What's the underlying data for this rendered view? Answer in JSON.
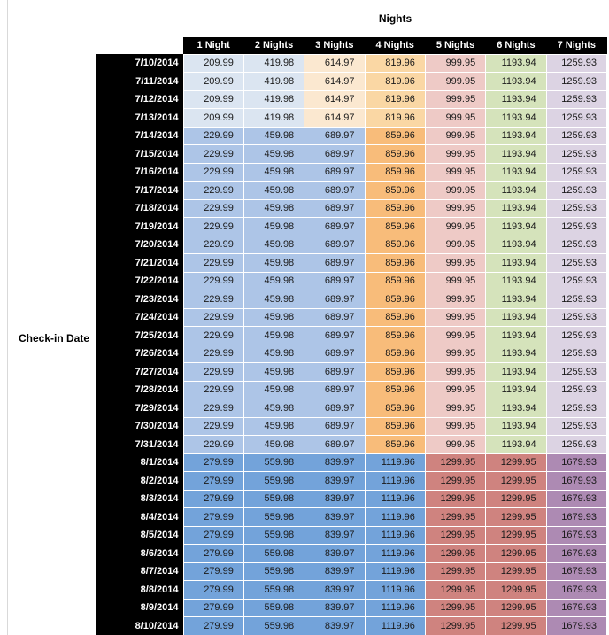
{
  "chart_data": {
    "type": "table",
    "title": "Nights",
    "row_axis_label": "Check-in Date",
    "columns": [
      "1 Night",
      "2 Nights",
      "3 Nights",
      "4 Nights",
      "5 Nights",
      "6 Nights",
      "7 Nights"
    ],
    "header_style": {
      "bg": "#000000",
      "text": "#ffffff"
    },
    "palette": {
      "blue_pale": "#dbe5f1",
      "blue_light": "#adc5e7",
      "blue_medium": "#73a3da",
      "peach_pale": "#fbe8d0",
      "orange_light": "#fad7a4",
      "orange": "#f8bc7a",
      "pink_pale": "#eecac6",
      "red_salmon": "#cf837f",
      "green_pale": "#d5e3bb",
      "lavender_pale": "#dcd3e3",
      "purple_mauve": "#ad8ab3"
    },
    "band_colors": {
      "early": [
        "blue_pale",
        "blue_pale",
        "peach_pale",
        "orange_light",
        "pink_pale",
        "green_pale",
        "lavender_pale"
      ],
      "mid": [
        "blue_light",
        "blue_light",
        "blue_light",
        "orange",
        "pink_pale",
        "green_pale",
        "lavender_pale"
      ],
      "late": [
        "blue_medium",
        "blue_medium",
        "blue_medium",
        "blue_medium",
        "red_salmon",
        "red_salmon",
        "purple_mauve"
      ]
    },
    "rows": [
      {
        "date": "7/10/2014",
        "band": "early",
        "values": [
          209.99,
          419.98,
          614.97,
          819.96,
          999.95,
          1193.94,
          1259.93
        ]
      },
      {
        "date": "7/11/2014",
        "band": "early",
        "values": [
          209.99,
          419.98,
          614.97,
          819.96,
          999.95,
          1193.94,
          1259.93
        ]
      },
      {
        "date": "7/12/2014",
        "band": "early",
        "values": [
          209.99,
          419.98,
          614.97,
          819.96,
          999.95,
          1193.94,
          1259.93
        ]
      },
      {
        "date": "7/13/2014",
        "band": "early",
        "values": [
          209.99,
          419.98,
          614.97,
          819.96,
          999.95,
          1193.94,
          1259.93
        ]
      },
      {
        "date": "7/14/2014",
        "band": "mid",
        "values": [
          229.99,
          459.98,
          689.97,
          859.96,
          999.95,
          1193.94,
          1259.93
        ]
      },
      {
        "date": "7/15/2014",
        "band": "mid",
        "values": [
          229.99,
          459.98,
          689.97,
          859.96,
          999.95,
          1193.94,
          1259.93
        ]
      },
      {
        "date": "7/16/2014",
        "band": "mid",
        "values": [
          229.99,
          459.98,
          689.97,
          859.96,
          999.95,
          1193.94,
          1259.93
        ]
      },
      {
        "date": "7/17/2014",
        "band": "mid",
        "values": [
          229.99,
          459.98,
          689.97,
          859.96,
          999.95,
          1193.94,
          1259.93
        ]
      },
      {
        "date": "7/18/2014",
        "band": "mid",
        "values": [
          229.99,
          459.98,
          689.97,
          859.96,
          999.95,
          1193.94,
          1259.93
        ]
      },
      {
        "date": "7/19/2014",
        "band": "mid",
        "values": [
          229.99,
          459.98,
          689.97,
          859.96,
          999.95,
          1193.94,
          1259.93
        ]
      },
      {
        "date": "7/20/2014",
        "band": "mid",
        "values": [
          229.99,
          459.98,
          689.97,
          859.96,
          999.95,
          1193.94,
          1259.93
        ]
      },
      {
        "date": "7/21/2014",
        "band": "mid",
        "values": [
          229.99,
          459.98,
          689.97,
          859.96,
          999.95,
          1193.94,
          1259.93
        ]
      },
      {
        "date": "7/22/2014",
        "band": "mid",
        "values": [
          229.99,
          459.98,
          689.97,
          859.96,
          999.95,
          1193.94,
          1259.93
        ]
      },
      {
        "date": "7/23/2014",
        "band": "mid",
        "values": [
          229.99,
          459.98,
          689.97,
          859.96,
          999.95,
          1193.94,
          1259.93
        ]
      },
      {
        "date": "7/24/2014",
        "band": "mid",
        "values": [
          229.99,
          459.98,
          689.97,
          859.96,
          999.95,
          1193.94,
          1259.93
        ]
      },
      {
        "date": "7/25/2014",
        "band": "mid",
        "values": [
          229.99,
          459.98,
          689.97,
          859.96,
          999.95,
          1193.94,
          1259.93
        ]
      },
      {
        "date": "7/26/2014",
        "band": "mid",
        "values": [
          229.99,
          459.98,
          689.97,
          859.96,
          999.95,
          1193.94,
          1259.93
        ]
      },
      {
        "date": "7/27/2014",
        "band": "mid",
        "values": [
          229.99,
          459.98,
          689.97,
          859.96,
          999.95,
          1193.94,
          1259.93
        ]
      },
      {
        "date": "7/28/2014",
        "band": "mid",
        "values": [
          229.99,
          459.98,
          689.97,
          859.96,
          999.95,
          1193.94,
          1259.93
        ]
      },
      {
        "date": "7/29/2014",
        "band": "mid",
        "values": [
          229.99,
          459.98,
          689.97,
          859.96,
          999.95,
          1193.94,
          1259.93
        ]
      },
      {
        "date": "7/30/2014",
        "band": "mid",
        "values": [
          229.99,
          459.98,
          689.97,
          859.96,
          999.95,
          1193.94,
          1259.93
        ]
      },
      {
        "date": "7/31/2014",
        "band": "mid",
        "values": [
          229.99,
          459.98,
          689.97,
          859.96,
          999.95,
          1193.94,
          1259.93
        ]
      },
      {
        "date": "8/1/2014",
        "band": "late",
        "values": [
          279.99,
          559.98,
          839.97,
          1119.96,
          1299.95,
          1299.95,
          1679.93
        ]
      },
      {
        "date": "8/2/2014",
        "band": "late",
        "values": [
          279.99,
          559.98,
          839.97,
          1119.96,
          1299.95,
          1299.95,
          1679.93
        ]
      },
      {
        "date": "8/3/2014",
        "band": "late",
        "values": [
          279.99,
          559.98,
          839.97,
          1119.96,
          1299.95,
          1299.95,
          1679.93
        ]
      },
      {
        "date": "8/4/2014",
        "band": "late",
        "values": [
          279.99,
          559.98,
          839.97,
          1119.96,
          1299.95,
          1299.95,
          1679.93
        ]
      },
      {
        "date": "8/5/2014",
        "band": "late",
        "values": [
          279.99,
          559.98,
          839.97,
          1119.96,
          1299.95,
          1299.95,
          1679.93
        ]
      },
      {
        "date": "8/6/2014",
        "band": "late",
        "values": [
          279.99,
          559.98,
          839.97,
          1119.96,
          1299.95,
          1299.95,
          1679.93
        ]
      },
      {
        "date": "8/7/2014",
        "band": "late",
        "values": [
          279.99,
          559.98,
          839.97,
          1119.96,
          1299.95,
          1299.95,
          1679.93
        ]
      },
      {
        "date": "8/8/2014",
        "band": "late",
        "values": [
          279.99,
          559.98,
          839.97,
          1119.96,
          1299.95,
          1299.95,
          1679.93
        ]
      },
      {
        "date": "8/9/2014",
        "band": "late",
        "values": [
          279.99,
          559.98,
          839.97,
          1119.96,
          1299.95,
          1299.95,
          1679.93
        ]
      },
      {
        "date": "8/10/2014",
        "band": "late",
        "values": [
          279.99,
          559.98,
          839.97,
          1119.96,
          1299.95,
          1299.95,
          1679.93
        ]
      }
    ]
  }
}
